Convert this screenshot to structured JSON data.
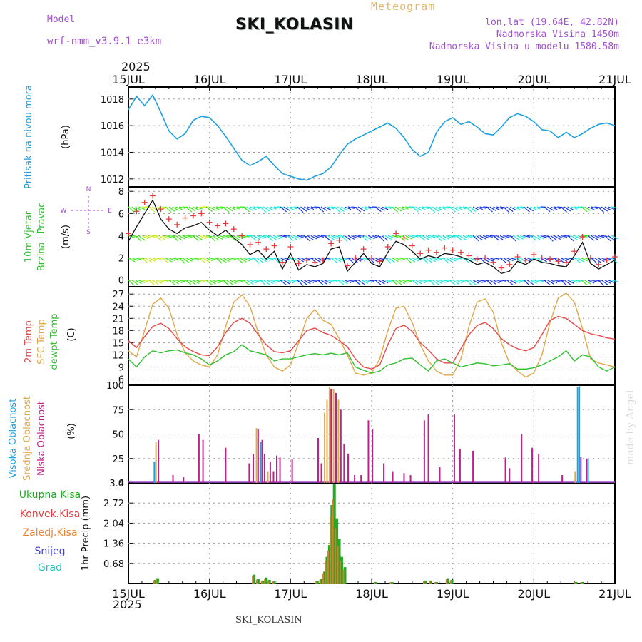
{
  "header": {
    "model_label": "Model",
    "model_name": "wrf-nmm_v3.9.1 e3km",
    "station": "SKI_KOLASIN",
    "product": "Meteogram",
    "lonlat": "lon,lat (19.64E, 42.82N)",
    "elevation": "Nadmorska Visina 1450m",
    "model_elevation": "Nadmorska Visina u modelu 1580.58m",
    "year_top": "2025",
    "year_bottom": "2025",
    "footer_station": "SKI_KOLASIN",
    "made_by": "made by Angel"
  },
  "colors": {
    "pressure": "#1ea0e0",
    "temp2m": "#e84848",
    "sfc": "#e0a848",
    "dewpt": "#30c030",
    "purple": "#a24fd0",
    "total_precip": "#22aa22",
    "convective": "#e83838",
    "snow": "#4040e0",
    "grad": "#20c0c0"
  },
  "chart_data": [
    {
      "type": "line",
      "id": "pressure",
      "ylabel": "Pritisak na nivou mora",
      "unit": "(hPa)",
      "ylim": [
        1011.4,
        1018.9
      ],
      "yticks": [
        "1012",
        "1014",
        "1016",
        "1018"
      ],
      "x_days": [
        0,
        0.1,
        0.2,
        0.3,
        0.4,
        0.5,
        0.6,
        0.7,
        0.8,
        0.9,
        1.0,
        1.1,
        1.2,
        1.3,
        1.4,
        1.5,
        1.6,
        1.7,
        1.8,
        1.9,
        2.0,
        2.1,
        2.2,
        2.3,
        2.4,
        2.5,
        2.6,
        2.7,
        2.8,
        2.9,
        3.0,
        3.1,
        3.2,
        3.3,
        3.4,
        3.5,
        3.6,
        3.7,
        3.8,
        3.9,
        4.0,
        4.1,
        4.2,
        4.3,
        4.4,
        4.5,
        4.6,
        4.7,
        4.8,
        4.9,
        5.0,
        5.1,
        5.2,
        5.3,
        5.4,
        5.5,
        5.6,
        5.7,
        5.8,
        5.9,
        6.0
      ],
      "values": [
        1017.2,
        1018.2,
        1017.5,
        1018.3,
        1017.0,
        1015.6,
        1015.0,
        1015.4,
        1016.4,
        1016.7,
        1016.6,
        1016.0,
        1015.2,
        1014.3,
        1013.4,
        1013.0,
        1013.3,
        1013.7,
        1013.0,
        1012.4,
        1012.2,
        1012.0,
        1011.9,
        1012.2,
        1012.4,
        1012.9,
        1013.8,
        1014.6,
        1015.0,
        1015.3,
        1015.6,
        1015.9,
        1016.2,
        1015.8,
        1015.1,
        1014.2,
        1013.7,
        1014.0,
        1015.5,
        1016.3,
        1016.6,
        1016.1,
        1016.3,
        1015.9,
        1015.4,
        1015.3,
        1015.9,
        1016.6,
        1016.9,
        1016.7,
        1016.3,
        1015.7,
        1015.6,
        1015.1,
        1015.5,
        1015.1,
        1015.4,
        1015.8,
        1016.1,
        1016.2,
        1016.0
      ]
    },
    {
      "type": "line",
      "id": "wind",
      "ylabel": [
        "10m Vjetar",
        "Brzina i Pravac"
      ],
      "unit": "(m/s)",
      "compass": [
        "N",
        "W",
        "E",
        "S"
      ],
      "ylim": [
        -0.6,
        8.4
      ],
      "yticks": [
        "0",
        "2",
        "4",
        "6",
        "8"
      ],
      "x_days": [
        0,
        0.1,
        0.2,
        0.3,
        0.4,
        0.5,
        0.6,
        0.7,
        0.8,
        0.9,
        1.0,
        1.1,
        1.2,
        1.3,
        1.4,
        1.5,
        1.6,
        1.7,
        1.8,
        1.9,
        2.0,
        2.1,
        2.2,
        2.3,
        2.4,
        2.5,
        2.6,
        2.7,
        2.8,
        2.9,
        3.0,
        3.1,
        3.2,
        3.3,
        3.4,
        3.5,
        3.6,
        3.7,
        3.8,
        3.9,
        4.0,
        4.1,
        4.2,
        4.3,
        4.4,
        4.5,
        4.6,
        4.7,
        4.8,
        4.9,
        5.0,
        5.1,
        5.2,
        5.3,
        5.4,
        5.5,
        5.6,
        5.7,
        5.8,
        5.9,
        6.0
      ],
      "series": [
        {
          "name": "wind speed",
          "values": [
            3.5,
            4.8,
            6.0,
            7.2,
            5.5,
            4.6,
            4.2,
            4.7,
            4.9,
            5.2,
            4.5,
            4.0,
            4.5,
            3.8,
            3.2,
            2.3,
            2.7,
            1.9,
            2.6,
            1.0,
            2.4,
            0.9,
            1.4,
            1.2,
            1.5,
            2.8,
            3.0,
            0.8,
            1.6,
            2.4,
            1.5,
            1.2,
            2.5,
            3.5,
            3.2,
            2.6,
            1.9,
            2.2,
            2.0,
            2.4,
            2.3,
            2.1,
            1.8,
            1.4,
            1.6,
            1.2,
            0.6,
            0.8,
            1.7,
            1.4,
            1.9,
            1.6,
            1.5,
            1.3,
            1.2,
            2.2,
            3.4,
            1.5,
            1.0,
            1.4,
            1.8
          ]
        },
        {
          "name": "gust",
          "values": [
            4.2,
            6.2,
            7.0,
            7.6,
            6.4,
            5.5,
            5.0,
            5.6,
            5.8,
            6.0,
            5.2,
            4.9,
            5.1,
            4.6,
            4.0,
            3.2,
            3.4,
            2.8,
            3.1,
            1.6,
            3.0,
            1.5,
            1.8,
            1.6,
            1.8,
            3.3,
            3.6,
            1.3,
            2.0,
            2.8,
            2.0,
            1.7,
            3.0,
            4.2,
            3.8,
            3.1,
            2.4,
            2.7,
            2.5,
            2.9,
            2.7,
            2.5,
            2.2,
            1.9,
            2.0,
            1.6,
            1.1,
            1.4,
            2.1,
            1.8,
            2.3,
            2.0,
            1.9,
            1.7,
            1.6,
            2.6,
            3.9,
            2.0,
            1.4,
            1.8,
            2.1
          ]
        }
      ]
    },
    {
      "type": "line",
      "id": "temperature",
      "ylabel": [
        "2m Temp",
        "SFC Temp",
        "dewpt Temp"
      ],
      "unit": "(C)",
      "ylim": [
        4.5,
        28.8
      ],
      "yticks": [
        "6",
        "9",
        "12",
        "15",
        "18",
        "21",
        "24",
        "27"
      ],
      "x_days": [
        0,
        0.1,
        0.2,
        0.3,
        0.4,
        0.5,
        0.6,
        0.7,
        0.8,
        0.9,
        1.0,
        1.1,
        1.2,
        1.3,
        1.4,
        1.5,
        1.6,
        1.7,
        1.8,
        1.9,
        2.0,
        2.1,
        2.2,
        2.3,
        2.4,
        2.5,
        2.6,
        2.7,
        2.8,
        2.9,
        3.0,
        3.1,
        3.2,
        3.3,
        3.4,
        3.5,
        3.6,
        3.7,
        3.8,
        3.9,
        4.0,
        4.1,
        4.2,
        4.3,
        4.4,
        4.5,
        4.6,
        4.7,
        4.8,
        4.9,
        5.0,
        5.1,
        5.2,
        5.3,
        5.4,
        5.5,
        5.6,
        5.7,
        5.8,
        5.9,
        6.0
      ],
      "series": [
        {
          "name": "2m Temp",
          "values": [
            15.5,
            13.8,
            16.5,
            19.0,
            19.8,
            18.5,
            16.0,
            14.0,
            12.8,
            12.0,
            11.8,
            14.0,
            17.5,
            20.0,
            21.0,
            19.8,
            17.0,
            14.5,
            12.8,
            12.5,
            13.0,
            15.5,
            18.0,
            18.6,
            17.5,
            16.8,
            15.5,
            14.0,
            11.0,
            9.0,
            8.5,
            9.5,
            14.5,
            18.5,
            19.3,
            17.8,
            15.0,
            13.2,
            11.0,
            10.0,
            10.0,
            13.5,
            17.0,
            19.2,
            20.0,
            18.5,
            16.0,
            14.5,
            13.5,
            13.0,
            13.8,
            17.0,
            20.5,
            21.5,
            21.0,
            19.5,
            18.0,
            17.2,
            16.8,
            16.2,
            15.9
          ]
        },
        {
          "name": "SFC Temp",
          "values": [
            13.0,
            11.5,
            18.0,
            24.5,
            26.0,
            23.5,
            17.0,
            12.5,
            10.5,
            9.5,
            9.0,
            12.0,
            19.0,
            25.0,
            26.8,
            24.0,
            17.5,
            12.0,
            9.0,
            8.0,
            9.5,
            15.0,
            21.0,
            23.2,
            20.5,
            19.5,
            16.0,
            12.0,
            7.5,
            7.0,
            7.5,
            11.0,
            18.0,
            23.5,
            24.0,
            20.0,
            14.5,
            10.5,
            8.0,
            7.0,
            7.0,
            11.0,
            19.0,
            25.0,
            25.8,
            22.5,
            15.0,
            10.0,
            8.0,
            6.5,
            7.5,
            12.0,
            20.0,
            26.0,
            27.2,
            25.0,
            18.5,
            11.0,
            10.0,
            9.5,
            9.0
          ]
        },
        {
          "name": "dewpt Temp",
          "values": [
            11.0,
            9.0,
            11.5,
            13.0,
            12.5,
            13.0,
            13.2,
            12.5,
            12.0,
            11.0,
            9.5,
            10.5,
            12.0,
            12.8,
            14.5,
            13.0,
            12.5,
            12.0,
            10.5,
            11.0,
            11.0,
            11.5,
            12.0,
            12.3,
            12.0,
            12.4,
            12.0,
            12.5,
            9.0,
            8.2,
            7.5,
            8.0,
            9.5,
            10.0,
            11.0,
            11.2,
            9.5,
            8.0,
            10.5,
            11.0,
            10.0,
            9.0,
            9.5,
            10.0,
            9.8,
            9.3,
            9.5,
            9.8,
            8.5,
            8.5,
            8.8,
            9.5,
            10.5,
            11.5,
            13.0,
            10.5,
            12.0,
            11.5,
            9.0,
            8.0,
            9.0
          ]
        }
      ]
    },
    {
      "type": "bar",
      "id": "cloud",
      "ylabel": [
        "Visoka Oblacnost",
        "Srednja Oblacnost",
        "Niska Oblacnost"
      ],
      "unit": "(%)",
      "ylim": [
        0,
        100
      ],
      "yticks": [
        "0",
        "25",
        "50",
        "75",
        "100"
      ],
      "bars": [
        {
          "x": 0.32,
          "series": "Visoka",
          "value": 22
        },
        {
          "x": 0.34,
          "series": "Srednja",
          "value": 42
        },
        {
          "x": 0.37,
          "series": "Niska",
          "value": 44
        },
        {
          "x": 0.55,
          "series": "Niska",
          "value": 8
        },
        {
          "x": 0.68,
          "series": "Niska",
          "value": 6
        },
        {
          "x": 0.87,
          "series": "Niska",
          "value": 50
        },
        {
          "x": 0.92,
          "series": "Niska",
          "value": 44
        },
        {
          "x": 1.2,
          "series": "Niska",
          "value": 36
        },
        {
          "x": 1.49,
          "series": "Niska",
          "value": 20
        },
        {
          "x": 1.54,
          "series": "Niska",
          "value": 30
        },
        {
          "x": 1.58,
          "series": "Srednja",
          "value": 56
        },
        {
          "x": 1.6,
          "series": "Niska",
          "value": 55
        },
        {
          "x": 1.63,
          "series": "Visoka",
          "value": 42
        },
        {
          "x": 1.65,
          "series": "Niska",
          "value": 44
        },
        {
          "x": 1.68,
          "series": "Niska",
          "value": 30
        },
        {
          "x": 1.72,
          "series": "Srednja",
          "value": 12
        },
        {
          "x": 1.75,
          "series": "Niska",
          "value": 22
        },
        {
          "x": 1.79,
          "series": "Niska",
          "value": 12
        },
        {
          "x": 1.83,
          "series": "Niska",
          "value": 28
        },
        {
          "x": 1.87,
          "series": "Niska",
          "value": 26
        },
        {
          "x": 2.02,
          "series": "Niska",
          "value": 24
        },
        {
          "x": 2.34,
          "series": "Niska",
          "value": 46
        },
        {
          "x": 2.38,
          "series": "Niska",
          "value": 20
        },
        {
          "x": 2.42,
          "series": "Srednja",
          "value": 72
        },
        {
          "x": 2.45,
          "series": "Srednja",
          "value": 85
        },
        {
          "x": 2.48,
          "series": "Srednja",
          "value": 98
        },
        {
          "x": 2.5,
          "series": "Niska",
          "value": 96
        },
        {
          "x": 2.53,
          "series": "Srednja",
          "value": 96
        },
        {
          "x": 2.56,
          "series": "Niska",
          "value": 92
        },
        {
          "x": 2.59,
          "series": "Srednja",
          "value": 85
        },
        {
          "x": 2.62,
          "series": "Niska",
          "value": 75
        },
        {
          "x": 2.66,
          "series": "Niska",
          "value": 40
        },
        {
          "x": 2.71,
          "series": "Niska",
          "value": 30
        },
        {
          "x": 2.79,
          "series": "Niska",
          "value": 8
        },
        {
          "x": 2.87,
          "series": "Niska",
          "value": 8
        },
        {
          "x": 2.96,
          "series": "Niska",
          "value": 64
        },
        {
          "x": 3.01,
          "series": "Niska",
          "value": 55
        },
        {
          "x": 3.15,
          "series": "Niska",
          "value": 20
        },
        {
          "x": 3.26,
          "series": "Niska",
          "value": 12
        },
        {
          "x": 3.4,
          "series": "Niska",
          "value": 10
        },
        {
          "x": 3.48,
          "series": "Niska",
          "value": 8
        },
        {
          "x": 3.65,
          "series": "Niska",
          "value": 64
        },
        {
          "x": 3.7,
          "series": "Niska",
          "value": 70
        },
        {
          "x": 3.84,
          "series": "Niska",
          "value": 16
        },
        {
          "x": 4.02,
          "series": "Niska",
          "value": 70
        },
        {
          "x": 4.09,
          "series": "Niska",
          "value": 35
        },
        {
          "x": 4.25,
          "series": "Niska",
          "value": 33
        },
        {
          "x": 4.65,
          "series": "Niska",
          "value": 26
        },
        {
          "x": 4.7,
          "series": "Niska",
          "value": 15
        },
        {
          "x": 4.85,
          "series": "Niska",
          "value": 50
        },
        {
          "x": 4.98,
          "series": "Niska",
          "value": 36
        },
        {
          "x": 5.06,
          "series": "Niska",
          "value": 30
        },
        {
          "x": 5.35,
          "series": "Niska",
          "value": 8
        },
        {
          "x": 5.51,
          "series": "Srednja",
          "value": 12
        },
        {
          "x": 5.54,
          "series": "Visoka",
          "value": 98
        },
        {
          "x": 5.56,
          "series": "Visoka",
          "value": 99
        },
        {
          "x": 5.58,
          "series": "Niska",
          "value": 27
        },
        {
          "x": 5.65,
          "series": "Niska",
          "value": 25
        },
        {
          "x": 5.67,
          "series": "Visoka",
          "value": 25
        }
      ]
    },
    {
      "type": "bar",
      "id": "precip",
      "ylabel": "1hr Precip",
      "unit": "(mm)",
      "legend": [
        "Ukupna Kisa",
        "Konvek.Kisa",
        "Zaledj.Kisa",
        "Snijeg",
        "Grad"
      ],
      "ylim": [
        0,
        3.4
      ],
      "yticks": [
        "0.68",
        "1.36",
        "2.04",
        "2.72",
        "3.4"
      ],
      "bars": [
        {
          "x": 0.33,
          "value": 0.12
        },
        {
          "x": 0.36,
          "value": 0.18
        },
        {
          "x": 1.55,
          "value": 0.3
        },
        {
          "x": 1.6,
          "value": 0.15
        },
        {
          "x": 1.66,
          "value": 0.1
        },
        {
          "x": 1.7,
          "value": 0.2
        },
        {
          "x": 1.74,
          "value": 0.12
        },
        {
          "x": 1.8,
          "value": 0.08
        },
        {
          "x": 2.33,
          "value": 0.08
        },
        {
          "x": 2.38,
          "value": 0.15
        },
        {
          "x": 2.42,
          "value": 0.4
        },
        {
          "x": 2.45,
          "value": 0.9
        },
        {
          "x": 2.48,
          "value": 1.3
        },
        {
          "x": 2.51,
          "value": 2.65
        },
        {
          "x": 2.54,
          "value": 3.35
        },
        {
          "x": 2.57,
          "value": 2.2
        },
        {
          "x": 2.6,
          "value": 1.5
        },
        {
          "x": 2.63,
          "value": 0.9
        },
        {
          "x": 2.67,
          "value": 0.55
        },
        {
          "x": 3.05,
          "value": 0.05
        },
        {
          "x": 3.25,
          "value": 0.05
        },
        {
          "x": 3.66,
          "value": 0.1
        },
        {
          "x": 3.73,
          "value": 0.1
        },
        {
          "x": 3.8,
          "value": 0.05
        },
        {
          "x": 3.94,
          "value": 0.18
        },
        {
          "x": 3.99,
          "value": 0.12
        },
        {
          "x": 5.52,
          "value": 0.05
        },
        {
          "x": 5.6,
          "value": 0.05
        }
      ]
    }
  ],
  "time_axis": {
    "labels": [
      "15JUL",
      "16JUL",
      "17JUL",
      "18JUL",
      "19JUL",
      "20JUL",
      "21JUL"
    ]
  }
}
